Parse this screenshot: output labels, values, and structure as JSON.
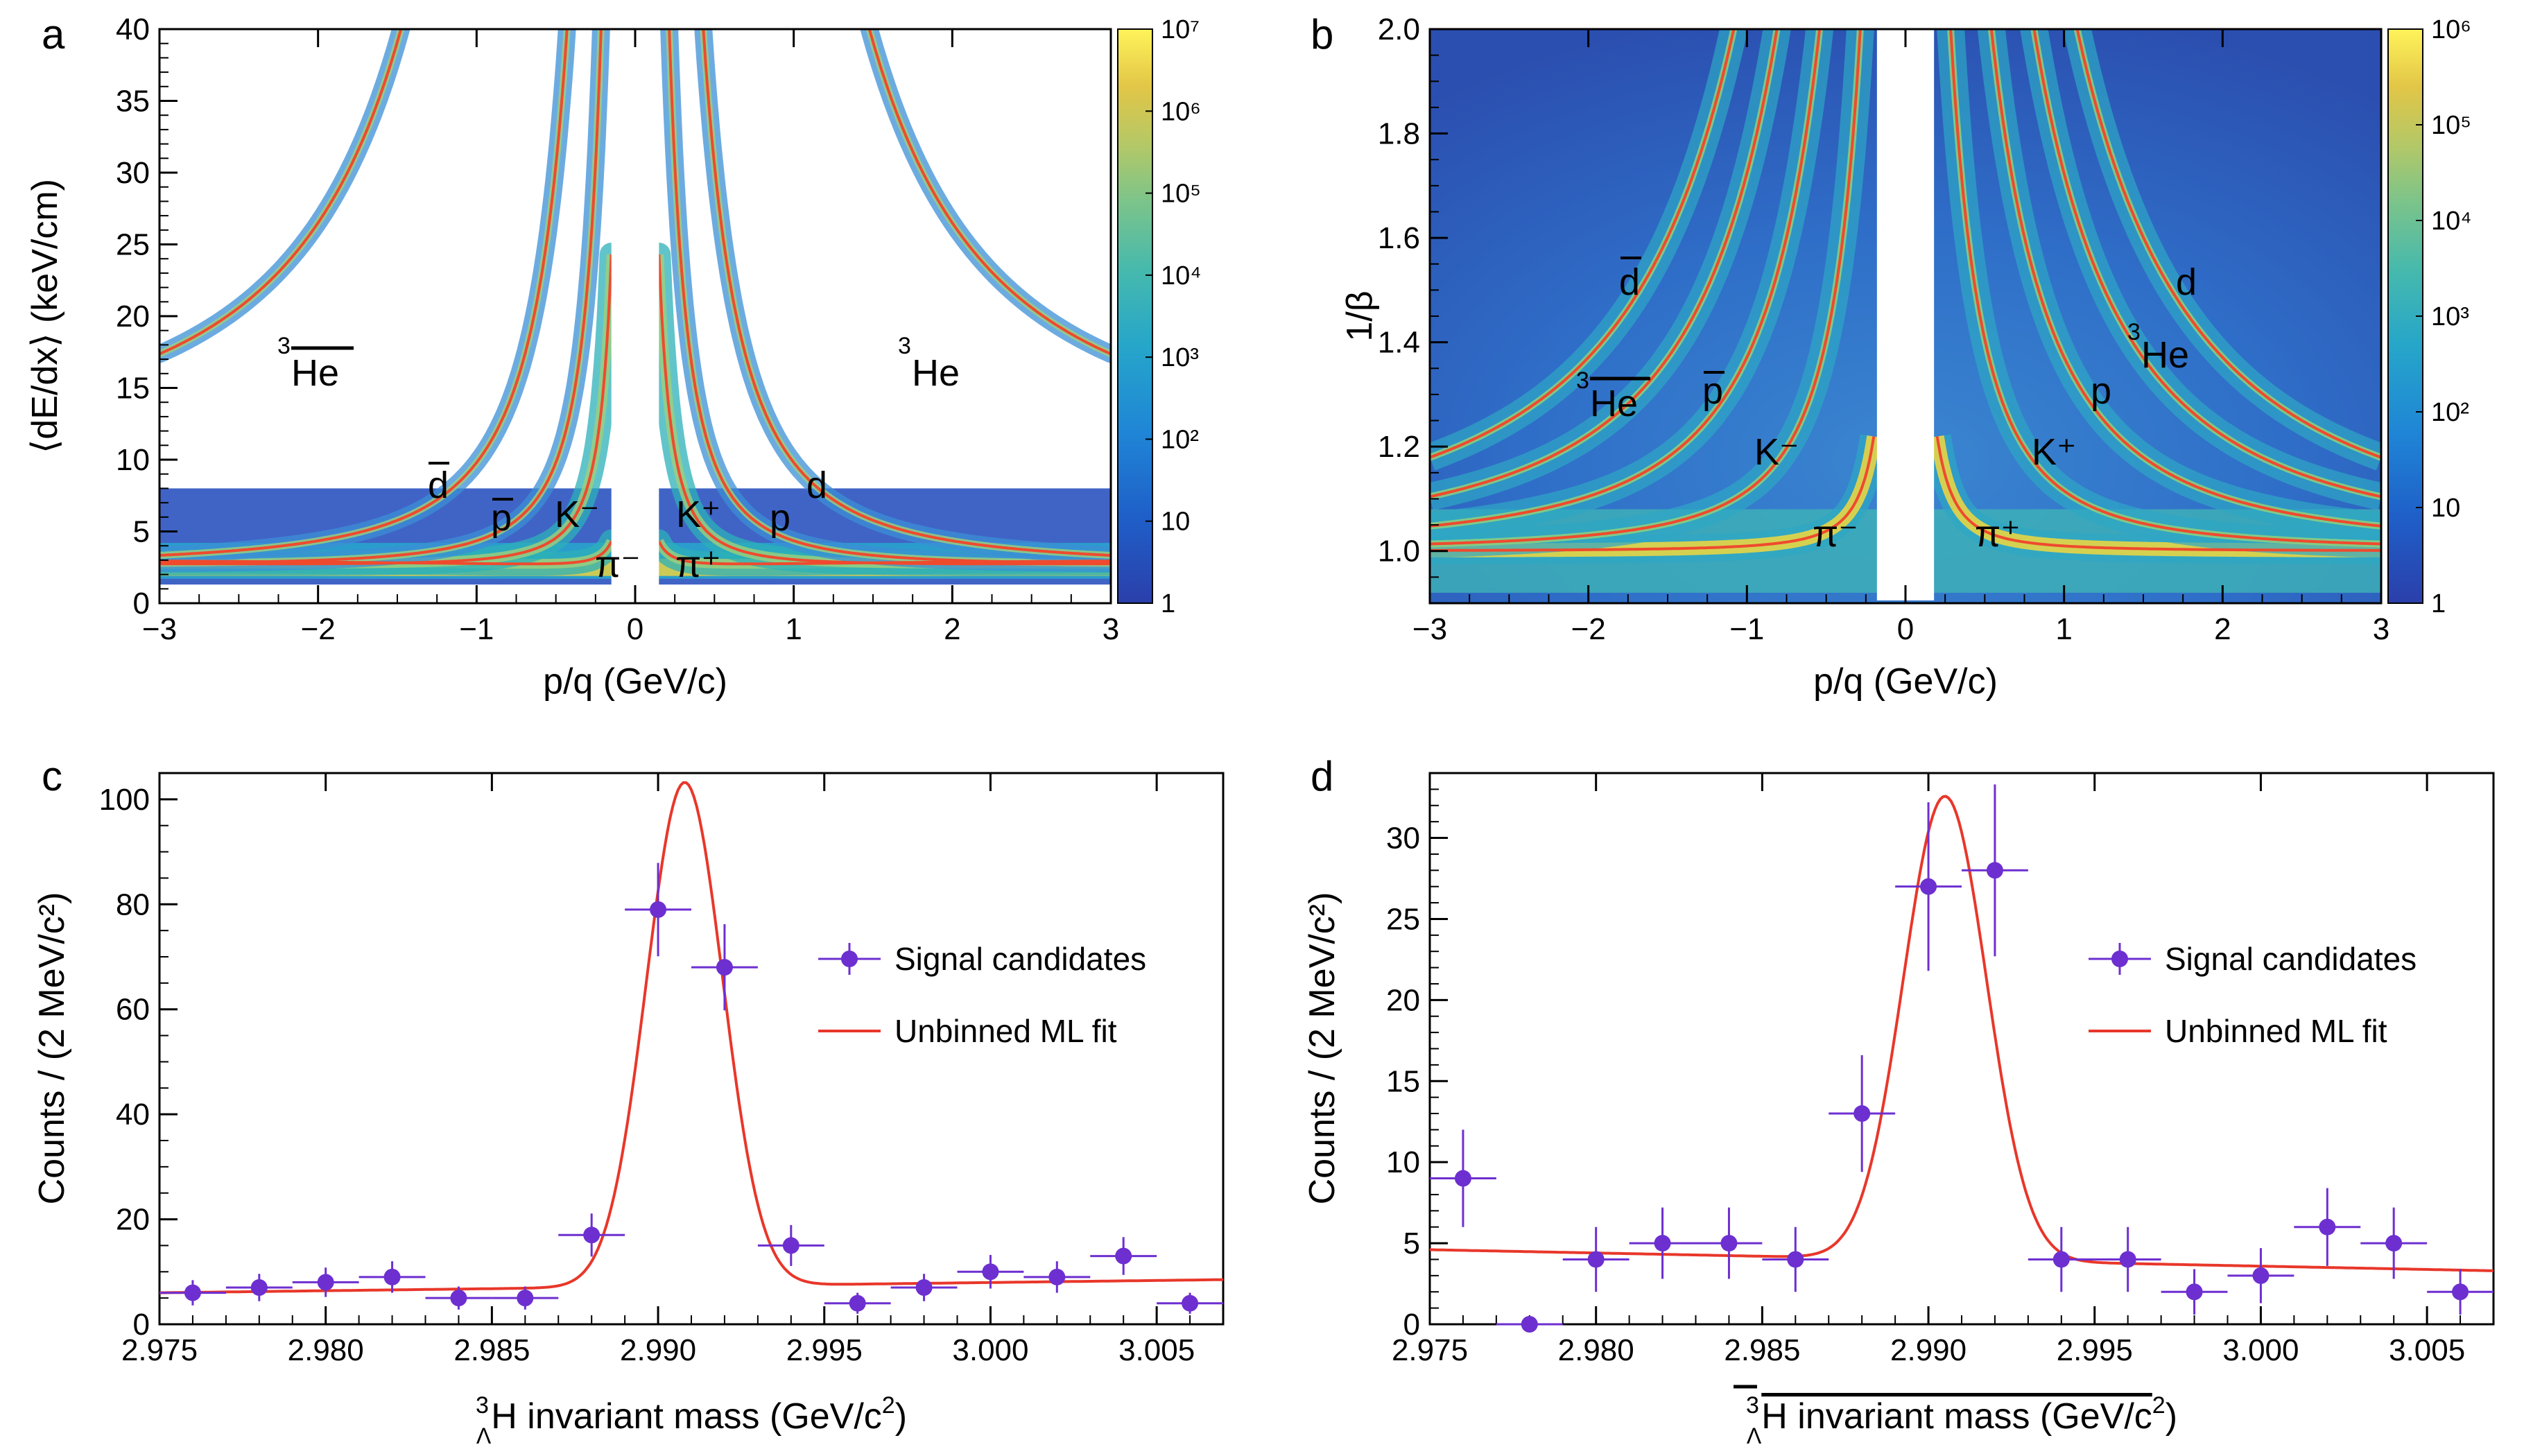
{
  "colors": {
    "curve": "#ef4a2e",
    "fit": "#e8372a",
    "points": "#6d2fd0",
    "axis": "#000000",
    "viridis": [
      "#2b3faa",
      "#1f5fc8",
      "#1f86d6",
      "#26a6c9",
      "#46b9ad",
      "#7cc48a",
      "#b5c866",
      "#e2c647",
      "#f6d83a",
      "#fff35a"
    ]
  },
  "chart_data": [
    {
      "panel": "a",
      "type": "heatmap",
      "xlabel": "p/q (GeV/c)",
      "ylabel": "⟨dE/dx⟩ (keV/cm)",
      "xlim": [
        -3,
        3
      ],
      "ylim": [
        0,
        40
      ],
      "xticks": [
        "−3",
        "−2",
        "−1",
        "0",
        "1",
        "2",
        "3"
      ],
      "yticks": [
        "0",
        "5",
        "10",
        "15",
        "20",
        "25",
        "30",
        "35",
        "40"
      ],
      "colorbar": {
        "scale": "log",
        "range": [
          1,
          10000000
        ],
        "labels": [
          "1",
          "10",
          "10²",
          "10³",
          "10⁴",
          "10⁵",
          "10⁶",
          "10⁷"
        ]
      },
      "curves": [
        {
          "label": "π⁺ / π⁻",
          "mass": 0.1396,
          "charge": 1
        },
        {
          "label": "K⁺ / K⁻",
          "mass": 0.4937,
          "charge": 1
        },
        {
          "label": "p / p̄",
          "mass": 0.9383,
          "charge": 1
        },
        {
          "label": "d / d̄",
          "mass": 1.8756,
          "charge": 1
        },
        {
          "label": "³He / anti-³He",
          "mass": 2.8084,
          "charge": 2
        }
      ],
      "particle_labels": {
        "pi_minus": "π⁻",
        "pi_plus": "π⁺",
        "k_minus": "K⁻",
        "k_plus": "K⁺",
        "p": "p",
        "pbar": "p",
        "d": "d",
        "dbar": "d",
        "he3": "He",
        "he3bar": "He",
        "he3_mass_number": "3"
      }
    },
    {
      "panel": "b",
      "type": "heatmap",
      "xlabel": "p/q (GeV/c)",
      "ylabel": "1/β",
      "xlim": [
        -3,
        3
      ],
      "ylim": [
        0.9,
        2.0
      ],
      "xticks": [
        "−3",
        "−2",
        "−1",
        "0",
        "1",
        "2",
        "3"
      ],
      "yticks": [
        "1.0",
        "1.2",
        "1.4",
        "1.6",
        "1.8",
        "2.0"
      ],
      "colorbar": {
        "scale": "log",
        "range": [
          1,
          1000000
        ],
        "labels": [
          "1",
          "10",
          "10²",
          "10³",
          "10⁴",
          "10⁵",
          "10⁶"
        ]
      },
      "curves": [
        {
          "label": "π⁺ / π⁻",
          "mass": 0.1396,
          "charge": 1
        },
        {
          "label": "K⁺ / K⁻",
          "mass": 0.4937,
          "charge": 1
        },
        {
          "label": "p / p̄",
          "mass": 0.9383,
          "charge": 1
        },
        {
          "label": "d / d̄",
          "mass": 1.8756,
          "charge": 1
        },
        {
          "label": "³He / anti-³He",
          "mass": 2.8084,
          "charge": 2
        }
      ],
      "particle_labels": {
        "pi_minus": "π⁻",
        "pi_plus": "π⁺",
        "k_minus": "K⁻",
        "k_plus": "K⁺",
        "p": "p",
        "pbar": "p",
        "d": "d",
        "dbar": "d",
        "he3": "He",
        "he3bar": "He",
        "he3_mass_number": "3"
      }
    },
    {
      "panel": "c",
      "type": "scatter",
      "xlabel_parts": {
        "sup": "3",
        "sub": "Λ",
        "main": "H invariant mass (GeV/c",
        "exp": "2",
        "close": ")"
      },
      "ylabel": "Counts / (2 MeV/c²)",
      "xlim": [
        2.975,
        3.007
      ],
      "ylim": [
        0,
        105
      ],
      "xticks": [
        2.975,
        2.98,
        2.985,
        2.99,
        2.995,
        3.0,
        3.005
      ],
      "xtick_labels": [
        "2.975",
        "2.980",
        "2.985",
        "2.990",
        "2.995",
        "3.000",
        "3.005"
      ],
      "yticks": [
        0,
        20,
        40,
        60,
        80,
        100
      ],
      "ytick_labels": [
        "0",
        "20",
        "40",
        "60",
        "80",
        "100"
      ],
      "x": [
        2.976,
        2.978,
        2.98,
        2.982,
        2.984,
        2.986,
        2.988,
        2.99,
        2.992,
        2.994,
        2.996,
        2.998,
        3.0,
        3.002,
        3.004,
        3.006
      ],
      "y": [
        6,
        7,
        8,
        9,
        5,
        5,
        17,
        79,
        68,
        15,
        4,
        7,
        10,
        9,
        13,
        4
      ],
      "yerr": [
        2.4,
        2.6,
        2.8,
        3.0,
        2.2,
        2.2,
        4.1,
        8.9,
        8.2,
        3.9,
        2.0,
        2.6,
        3.2,
        3.0,
        3.6,
        2.0
      ],
      "xerr": 0.001,
      "fit": {
        "amplitude": 96,
        "mean": 2.9908,
        "sigma": 0.00115,
        "bkg_at_2975": 6.0,
        "bkg_at_3007": 8.5
      },
      "legend": {
        "points_label": "Signal candidates",
        "fit_label": "Unbinned ML fit"
      }
    },
    {
      "panel": "d",
      "type": "scatter",
      "xlabel_parts": {
        "sup": "3",
        "sub": "Λ",
        "main": "H invariant mass (GeV/c",
        "exp": "2",
        "close": ")"
      },
      "ylabel": "Counts / (2 MeV/c²)",
      "xlim": [
        2.975,
        3.007
      ],
      "ylim": [
        0,
        34
      ],
      "xticks": [
        2.975,
        2.98,
        2.985,
        2.99,
        2.995,
        3.0,
        3.005
      ],
      "xtick_labels": [
        "2.975",
        "2.980",
        "2.985",
        "2.990",
        "2.995",
        "3.000",
        "3.005"
      ],
      "yticks": [
        0,
        5,
        10,
        15,
        20,
        25,
        30
      ],
      "ytick_labels": [
        "0",
        "5",
        "10",
        "15",
        "20",
        "25",
        "30"
      ],
      "x": [
        2.976,
        2.978,
        2.98,
        2.982,
        2.984,
        2.986,
        2.988,
        2.99,
        2.992,
        2.994,
        2.996,
        2.998,
        3.0,
        3.002,
        3.004,
        3.006
      ],
      "y": [
        9,
        0,
        4,
        5,
        5,
        4,
        13,
        27,
        28,
        4,
        4,
        2,
        3,
        6,
        5,
        2
      ],
      "yerr": [
        3.0,
        0,
        2.0,
        2.2,
        2.2,
        2.0,
        3.6,
        5.2,
        5.3,
        2.0,
        2.0,
        1.4,
        1.7,
        2.4,
        2.2,
        1.4
      ],
      "xerr": 0.001,
      "fit": {
        "amplitude": 28.6,
        "mean": 2.9905,
        "sigma": 0.00125,
        "bkg_at_2975": 4.6,
        "bkg_at_3007": 3.3
      },
      "legend": {
        "points_label": "Signal candidates",
        "fit_label": "Unbinned ML fit"
      }
    }
  ],
  "panel_letters": {
    "a": "a",
    "b": "b",
    "c": "c",
    "d": "d"
  }
}
